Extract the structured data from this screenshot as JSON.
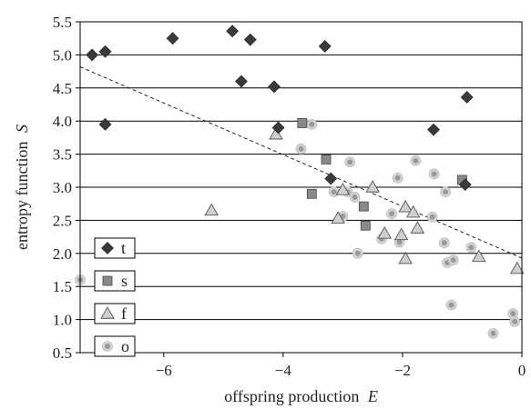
{
  "chart_data": {
    "type": "scatter",
    "title": "",
    "xlabel": "offspring production",
    "xlabel_var": "E",
    "ylabel": "entropy function",
    "ylabel_var": "S",
    "xlim": [
      -7.4,
      0
    ],
    "ylim": [
      0.5,
      5.5
    ],
    "xticks": [
      -6,
      -4,
      -2,
      0
    ],
    "xtick_labels": [
      "−6",
      "−4",
      "−2",
      "0"
    ],
    "yticks": [
      0.5,
      1.0,
      1.5,
      2.0,
      2.5,
      3.0,
      3.5,
      4.0,
      4.5,
      5.0,
      5.5
    ],
    "ytick_labels": [
      "0.5",
      "1.0",
      "1.5",
      "2.0",
      "2.5",
      "3.0",
      "3.5",
      "4.0",
      "4.5",
      "5.0",
      "5.5"
    ],
    "grid": "horizontal",
    "legend_position": "bottom-left",
    "trendline": {
      "style": "dashed",
      "points": [
        [
          -7.4,
          4.82
        ],
        [
          0,
          1.93
        ]
      ]
    },
    "series": [
      {
        "name": "t",
        "marker": "diamond",
        "color": "#3a3a3a",
        "points": [
          [
            -7.2,
            5.0
          ],
          [
            -6.98,
            5.05
          ],
          [
            -6.98,
            3.95
          ],
          [
            -5.85,
            5.25
          ],
          [
            -4.85,
            5.36
          ],
          [
            -4.55,
            5.23
          ],
          [
            -4.7,
            4.6
          ],
          [
            -4.15,
            4.52
          ],
          [
            -4.08,
            3.9
          ],
          [
            -3.3,
            5.13
          ],
          [
            -3.2,
            3.13
          ],
          [
            -1.48,
            3.87
          ],
          [
            -0.92,
            4.36
          ],
          [
            -0.95,
            3.04
          ]
        ]
      },
      {
        "name": "s",
        "marker": "square",
        "color": "#8a8a8a",
        "points": [
          [
            -3.68,
            3.97
          ],
          [
            -3.28,
            3.42
          ],
          [
            -3.52,
            2.9
          ],
          [
            -2.65,
            2.71
          ],
          [
            -2.62,
            2.42
          ],
          [
            -1.0,
            3.11
          ]
        ]
      },
      {
        "name": "f",
        "marker": "triangle",
        "color": "#cfcfcf",
        "points": [
          [
            -4.12,
            3.8
          ],
          [
            -5.2,
            2.65
          ],
          [
            -3.0,
            2.96
          ],
          [
            -3.08,
            2.53
          ],
          [
            -2.5,
            3.0
          ],
          [
            -1.95,
            2.7
          ],
          [
            -1.82,
            2.62
          ],
          [
            -2.3,
            2.3
          ],
          [
            -2.02,
            2.28
          ],
          [
            -1.75,
            2.38
          ],
          [
            -1.95,
            1.92
          ],
          [
            -0.72,
            1.95
          ],
          [
            -0.08,
            1.77
          ]
        ]
      },
      {
        "name": "o",
        "marker": "circle",
        "color": "#9a9a9a",
        "points": [
          [
            -3.52,
            3.95
          ],
          [
            -3.7,
            3.58
          ],
          [
            -2.88,
            3.38
          ],
          [
            -3.15,
            2.93
          ],
          [
            -2.92,
            2.93
          ],
          [
            -2.8,
            2.85
          ],
          [
            -3.0,
            2.56
          ],
          [
            -2.75,
            2.0
          ],
          [
            -2.35,
            2.22
          ],
          [
            -2.18,
            2.6
          ],
          [
            -2.05,
            2.17
          ],
          [
            -2.08,
            3.14
          ],
          [
            -1.78,
            3.4
          ],
          [
            -1.47,
            3.2
          ],
          [
            -1.5,
            2.55
          ],
          [
            -1.3,
            2.16
          ],
          [
            -1.28,
            2.93
          ],
          [
            -1.25,
            1.86
          ],
          [
            -1.15,
            1.9
          ],
          [
            -0.85,
            2.09
          ],
          [
            -1.18,
            1.22
          ],
          [
            -0.48,
            0.79
          ],
          [
            -0.15,
            1.09
          ],
          [
            -0.12,
            0.97
          ],
          [
            -7.4,
            1.6
          ]
        ]
      }
    ]
  }
}
